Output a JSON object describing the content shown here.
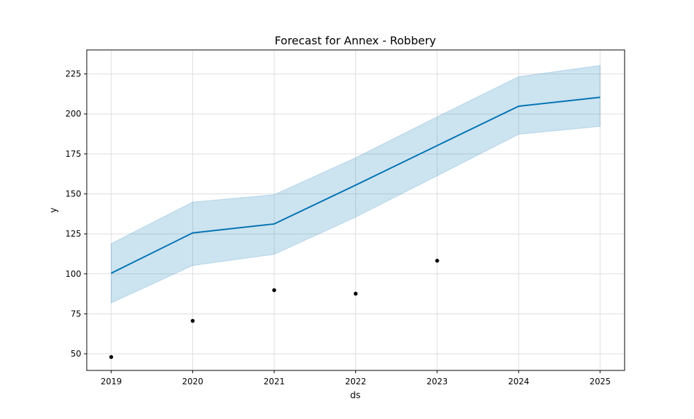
{
  "chart_data": {
    "type": "line",
    "title": "Forecast for Annex - Robbery",
    "xlabel": "ds",
    "ylabel": "y",
    "x": [
      2019,
      2020,
      2021,
      2022,
      2023,
      2024,
      2025
    ],
    "xlim": [
      2018.7,
      2025.3
    ],
    "ylim": [
      39.6,
      240
    ],
    "x_ticks": [
      "2019",
      "2020",
      "2021",
      "2022",
      "2023",
      "2024",
      "2025"
    ],
    "y_ticks": [
      50,
      75,
      100,
      125,
      150,
      175,
      200,
      225
    ],
    "grid": true,
    "series": [
      {
        "role": "forecast",
        "values": [
          100.4,
          125.6,
          131.2,
          155.5,
          180.2,
          204.8,
          210.4
        ],
        "color": "#0072b2"
      },
      {
        "role": "uncertainty_interval",
        "lower": [
          81.8,
          105.2,
          112.2,
          135.5,
          161.3,
          187.3,
          192.2
        ],
        "upper": [
          118.9,
          144.9,
          149.5,
          172.6,
          198.2,
          223.3,
          230.3
        ],
        "color": "#0072b2"
      },
      {
        "role": "actual",
        "x": [
          2019,
          2020,
          2021,
          2022,
          2023
        ],
        "values": [
          48,
          70.6,
          89.8,
          87.6,
          108.2
        ],
        "color": "#000000"
      }
    ]
  }
}
